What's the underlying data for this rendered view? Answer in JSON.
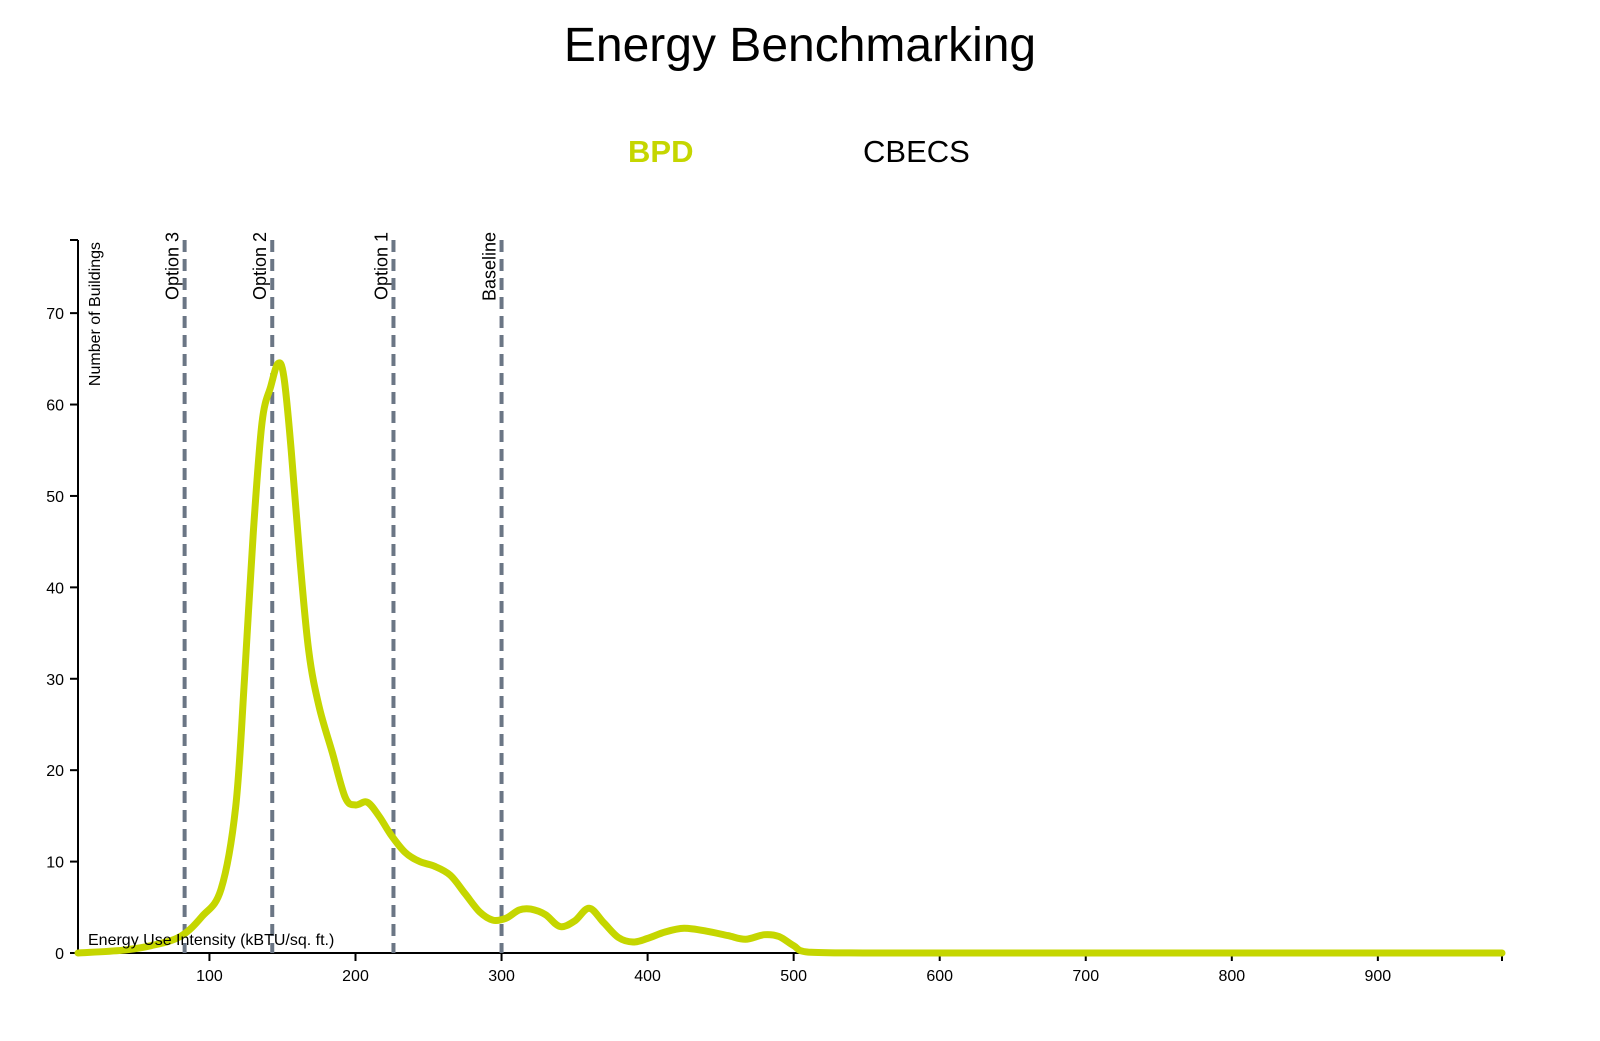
{
  "colors": {
    "series": "#c5d600",
    "marker": "#6b7685",
    "axis": "#000000"
  },
  "chart_data": {
    "type": "line",
    "title": "Energy Benchmarking",
    "legend": {
      "placement": "top-center",
      "items": [
        {
          "name": "BPD",
          "active": true
        },
        {
          "name": "CBECS",
          "active": false
        }
      ]
    },
    "xlabel": "Energy Use Intensity (kBTU/sq. ft.)",
    "ylabel": "Number of Buildings",
    "xlim": [
      10,
      985
    ],
    "ylim": [
      0,
      78
    ],
    "xticks": [
      100,
      200,
      300,
      400,
      500,
      600,
      700,
      800,
      900
    ],
    "yticks": [
      0,
      10,
      20,
      30,
      40,
      50,
      60,
      70
    ],
    "grid": false,
    "series": [
      {
        "name": "BPD",
        "x": [
          10,
          40,
          60,
          80,
          95,
          108,
          118,
          124,
          130,
          136,
          142,
          147,
          151,
          156,
          162,
          168,
          175,
          184,
          193,
          200,
          208,
          216,
          224,
          234,
          244,
          254,
          265,
          275,
          285,
          294,
          303,
          312,
          320,
          330,
          340,
          350,
          360,
          370,
          380,
          390,
          400,
          412,
          425,
          440,
          455,
          467,
          480,
          490,
          500,
          510,
          550,
          600,
          700,
          800,
          900,
          985
        ],
        "y": [
          0,
          0.3,
          0.8,
          1.8,
          4.0,
          7.0,
          16,
          30,
          46,
          58,
          62,
          64.5,
          63,
          55,
          43,
          33,
          27,
          22,
          17,
          16.2,
          16.5,
          15,
          13,
          11,
          10,
          9.5,
          8.5,
          6.5,
          4.5,
          3.6,
          3.8,
          4.7,
          4.8,
          4.2,
          2.9,
          3.5,
          4.9,
          3.3,
          1.7,
          1.2,
          1.6,
          2.3,
          2.7,
          2.4,
          1.9,
          1.5,
          2.0,
          1.8,
          0.8,
          0.1,
          0,
          0,
          0,
          0,
          0,
          0
        ]
      }
    ],
    "markers": [
      {
        "label": "Option 3",
        "x": 83
      },
      {
        "label": "Option 2",
        "x": 143
      },
      {
        "label": "Option 1",
        "x": 226
      },
      {
        "label": "Baseline",
        "x": 300
      }
    ]
  }
}
